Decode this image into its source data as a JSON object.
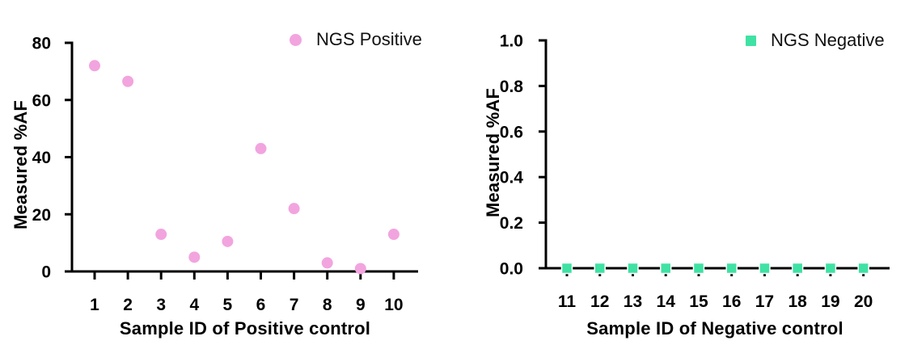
{
  "figure": {
    "background": "#ffffff",
    "axis_color": "#000000",
    "text_color": "#000000"
  },
  "chart_data": [
    {
      "type": "scatter",
      "legend": "NGS Positive",
      "legend_position": "top-right",
      "marker": "circle",
      "marker_color": "#F2A4DF",
      "xlabel": "Sample ID of Positive control",
      "ylabel": "Measured %AF",
      "x": [
        1,
        2,
        3,
        4,
        5,
        6,
        7,
        8,
        9,
        10
      ],
      "y": [
        72,
        66.5,
        13,
        5,
        10.5,
        43,
        22,
        3,
        1,
        13
      ],
      "xtick_labels": [
        "1",
        "2",
        "3",
        "4",
        "5",
        "6",
        "7",
        "8",
        "9",
        "10"
      ],
      "yticks": [
        0,
        20,
        40,
        60,
        80
      ],
      "ytick_labels": [
        "0",
        "20",
        "40",
        "60",
        "80"
      ],
      "ylim": [
        0,
        80
      ],
      "grid": false
    },
    {
      "type": "scatter",
      "legend": "NGS Negative",
      "legend_position": "top-right",
      "marker": "square",
      "marker_color": "#3FE2A4",
      "xlabel": "Sample ID of Negative control",
      "ylabel": "Measured %AF",
      "x": [
        11,
        12,
        13,
        14,
        15,
        16,
        17,
        18,
        19,
        20
      ],
      "y": [
        0,
        0,
        0,
        0,
        0,
        0,
        0,
        0,
        0,
        0
      ],
      "xtick_labels": [
        "11",
        "12",
        "13",
        "14",
        "15",
        "16",
        "17",
        "18",
        "19",
        "20"
      ],
      "yticks": [
        0,
        0.2,
        0.4,
        0.6,
        0.8,
        1.0
      ],
      "ytick_labels": [
        "0.0",
        "0.2",
        "0.4",
        "0.6",
        "0.8",
        "1.0"
      ],
      "ylim": [
        0,
        1.0
      ],
      "grid": false
    }
  ]
}
